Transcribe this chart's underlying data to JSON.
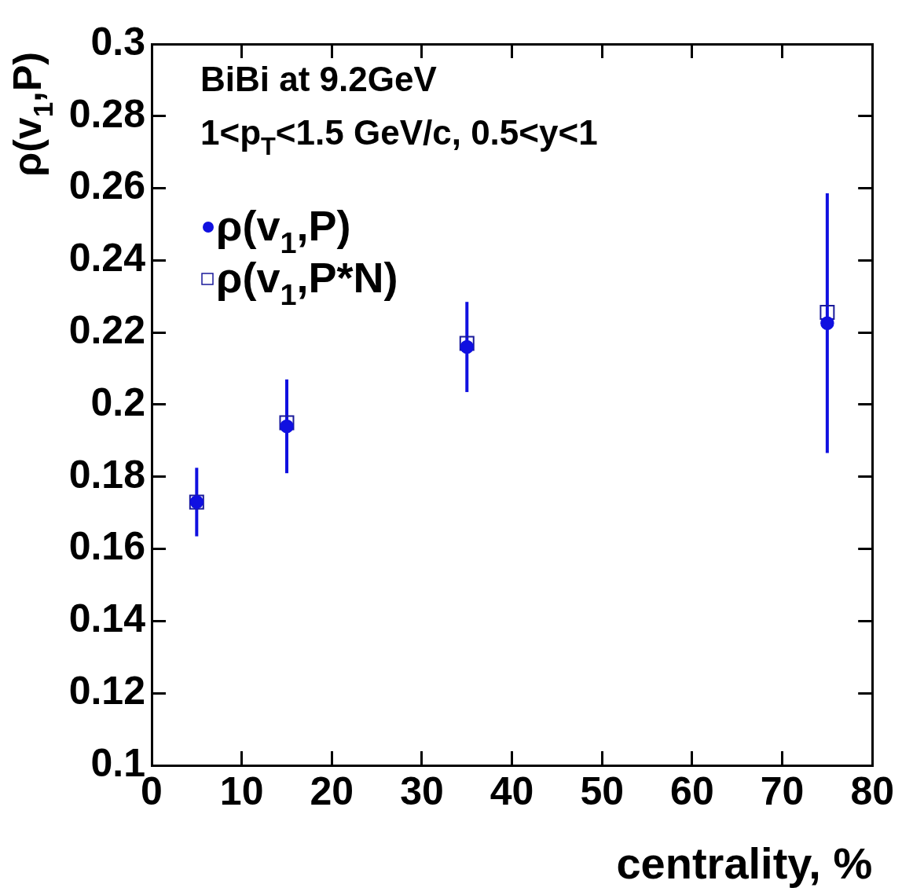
{
  "chart_data": {
    "type": "scatter",
    "ylabel": "ρ(v$_{1}$,P)",
    "xlabel": "centrality, %",
    "annotations": [
      "BiBi at 9.2GeV",
      "1<p$_{T}$<1.5 GeV/c, 0.5<y<1"
    ],
    "x": [
      5,
      15,
      35,
      75
    ],
    "series": [
      {
        "name": "ρ(v$_{1}$,P)",
        "color": "#1010e0",
        "marker": "circle",
        "values": [
          0.173,
          0.194,
          0.216,
          0.2226
        ],
        "errors": [
          0.0095,
          0.013,
          0.0125,
          0.036
        ]
      },
      {
        "name": "ρ(v$_{1}$,P*N)",
        "color": "#1a1a9a",
        "marker": "square",
        "values": [
          0.173,
          0.195,
          0.217,
          0.2256
        ]
      }
    ],
    "xlim": [
      0,
      80
    ],
    "xticks": [
      0,
      10,
      20,
      30,
      40,
      50,
      60,
      70,
      80
    ],
    "ylim": [
      0.1,
      0.3
    ],
    "yticks": [
      0.1,
      0.12,
      0.14,
      0.16,
      0.18,
      0.2,
      0.22,
      0.24,
      0.26,
      0.28,
      0.3
    ],
    "grid": false,
    "legend": "top left"
  }
}
